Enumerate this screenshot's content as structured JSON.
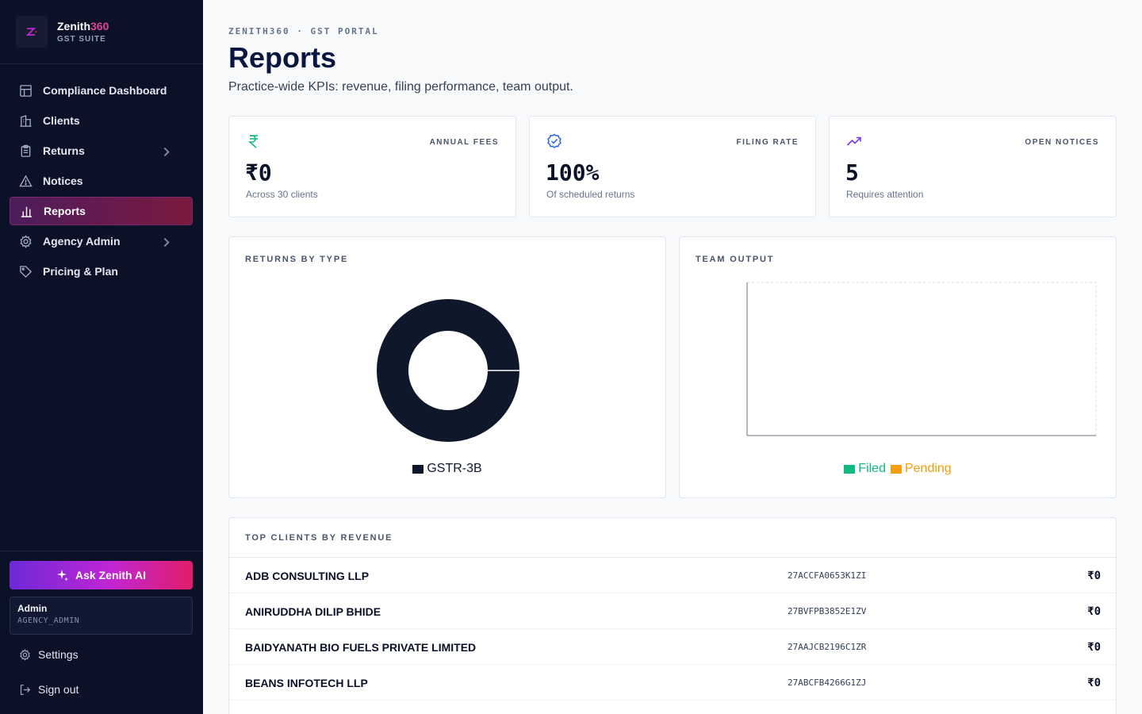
{
  "brand": {
    "name": "Zenith",
    "name_accent": "360",
    "subtitle": "GST SUITE"
  },
  "sidebar": {
    "items": [
      {
        "label": "Compliance Dashboard",
        "icon": "dashboard-grid-icon",
        "active": false
      },
      {
        "label": "Clients",
        "icon": "building-icon",
        "active": false
      },
      {
        "label": "Returns",
        "icon": "clipboard-icon",
        "active": false,
        "has_submenu": true
      },
      {
        "label": "Notices",
        "icon": "warning-triangle-icon",
        "active": false
      },
      {
        "label": "Reports",
        "icon": "bar-chart-icon",
        "active": true
      },
      {
        "label": "Agency Admin",
        "icon": "gear-icon",
        "active": false,
        "has_submenu": true
      },
      {
        "label": "Pricing & Plan",
        "icon": "tag-icon",
        "active": false
      }
    ],
    "ai_button": "Ask Zenith AI",
    "user": {
      "name": "Admin",
      "role": "AGENCY_ADMIN"
    },
    "settings": "Settings",
    "sign_out": "Sign out"
  },
  "header": {
    "eyebrow": "ZENITH360 · GST PORTAL",
    "title": "Reports",
    "subtitle": "Practice-wide KPIs: revenue, filing performance, team output."
  },
  "kpis": [
    {
      "label": "ANNUAL FEES",
      "value": "₹0",
      "note": "Across 30 clients",
      "icon": "rupee-icon",
      "color": "#10b981"
    },
    {
      "label": "FILING RATE",
      "value": "100%",
      "note": "Of scheduled returns",
      "icon": "check-circle-icon",
      "color": "#2563eb"
    },
    {
      "label": "OPEN NOTICES",
      "value": "5",
      "note": "Requires attention",
      "icon": "trending-up-icon",
      "color": "#7c3aed"
    }
  ],
  "panels": {
    "returns_by_type": "RETURNS BY TYPE",
    "team_output": "TEAM OUTPUT"
  },
  "chart_data": [
    {
      "type": "pie",
      "title": "RETURNS BY TYPE",
      "categories": [
        "GSTR-3B"
      ],
      "values": [
        100
      ],
      "colors": [
        "#0f172a"
      ],
      "donut": true
    },
    {
      "type": "bar",
      "title": "TEAM OUTPUT",
      "categories": [],
      "series": [
        {
          "name": "Filed",
          "values": [],
          "color": "#10b981"
        },
        {
          "name": "Pending",
          "values": [],
          "color": "#f59e0b"
        }
      ],
      "grid": true,
      "legend": "bottom"
    }
  ],
  "top_clients": {
    "title": "TOP CLIENTS BY REVENUE",
    "rows": [
      {
        "name": "ADB CONSULTING LLP",
        "gstin": "27ACCFA0653K1ZI",
        "revenue": "₹0"
      },
      {
        "name": "ANIRUDDHA DILIP BHIDE",
        "gstin": "27BVFPB3852E1ZV",
        "revenue": "₹0"
      },
      {
        "name": "BAIDYANATH BIO FUELS PRIVATE LIMITED",
        "gstin": "27AAJCB2196C1ZR",
        "revenue": "₹0"
      },
      {
        "name": "BEANS INFOTECH LLP",
        "gstin": "27ABCFB4266G1ZJ",
        "revenue": "₹0"
      }
    ]
  }
}
